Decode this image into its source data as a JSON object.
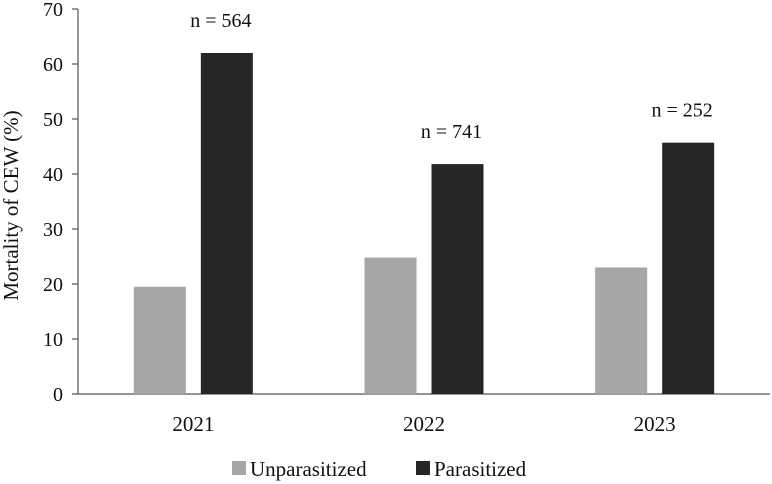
{
  "chart_data": {
    "type": "bar",
    "categories": [
      "2021",
      "2022",
      "2023"
    ],
    "series": [
      {
        "name": "Unparasitized",
        "values": [
          19.5,
          24.8,
          23.0
        ],
        "color": "#a6a6a6"
      },
      {
        "name": "Parasitized",
        "values": [
          62.0,
          41.8,
          45.7
        ],
        "color": "#262626"
      }
    ],
    "annotations": [
      "n = 564",
      "n = 741",
      "n = 252"
    ],
    "title": "",
    "xlabel": "",
    "ylabel": "Mortality of CEW (%)",
    "ylim": [
      0,
      70
    ],
    "yticks": [
      0,
      10,
      20,
      30,
      40,
      50,
      60,
      70
    ],
    "grid": false,
    "legend": "bottom"
  }
}
